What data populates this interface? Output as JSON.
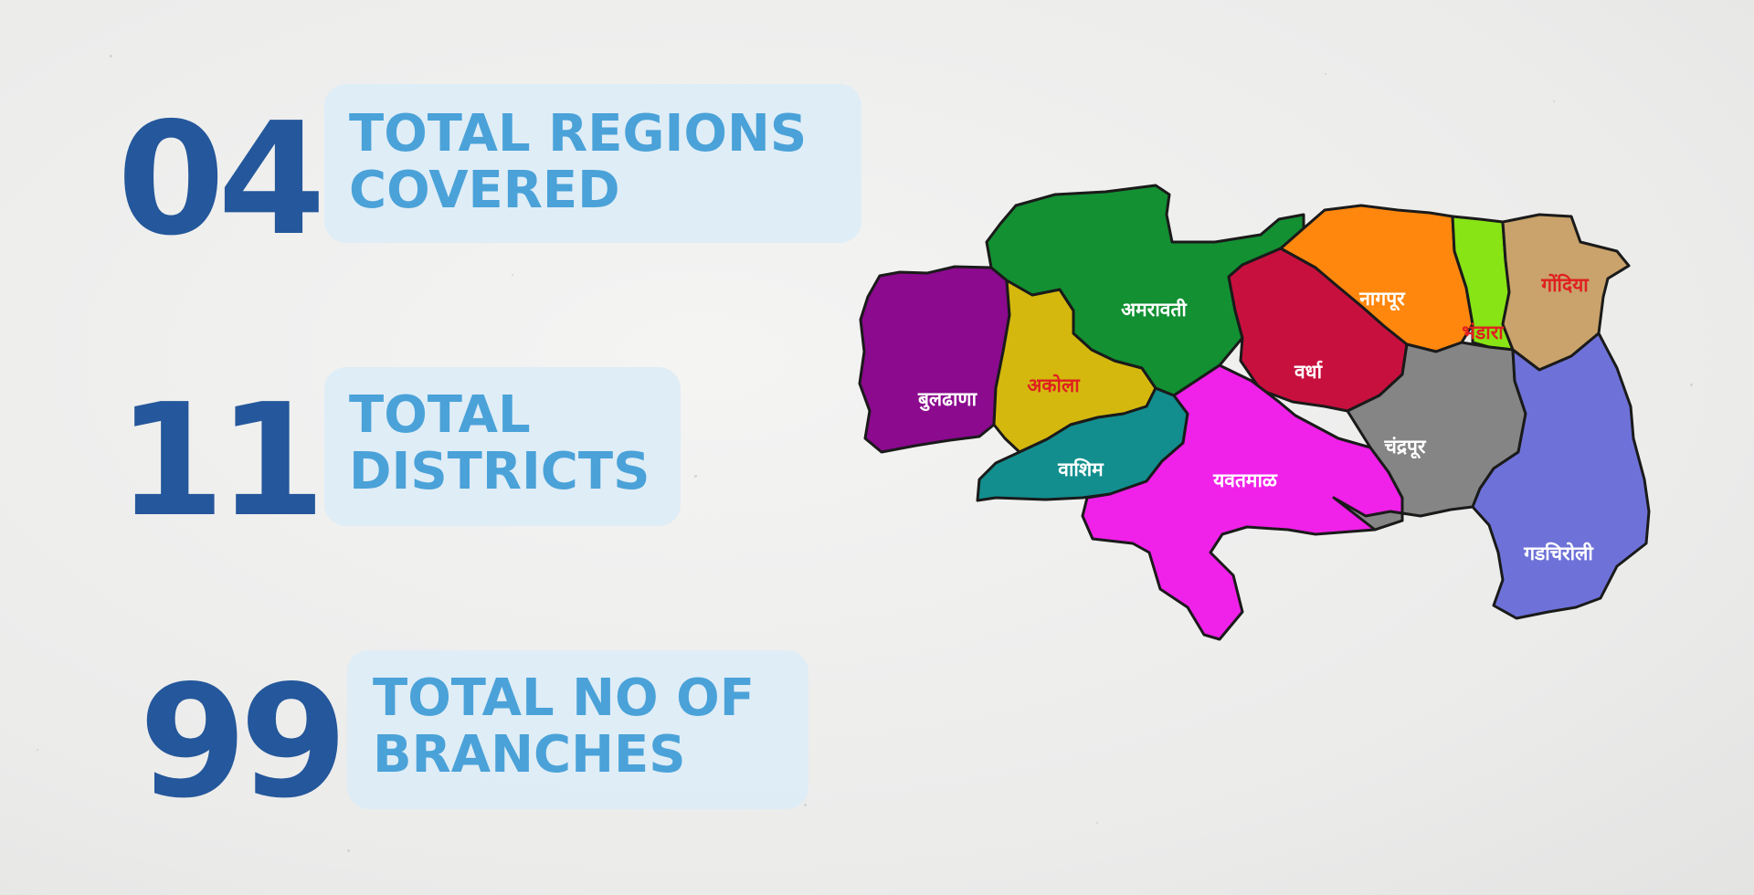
{
  "stats": [
    {
      "number": "04",
      "line1": "TOTAL REGIONS",
      "line2": "COVERED"
    },
    {
      "number": "11",
      "line1": "TOTAL",
      "line2": "DISTRICTS"
    },
    {
      "number": "99",
      "line1": "TOTAL NO OF",
      "line2": "BRANCHES"
    }
  ],
  "map": {
    "districts": [
      {
        "name": "बुलढाणा",
        "fill": "#8b0a8e",
        "text_color": "#ffffff"
      },
      {
        "name": "अकोला",
        "fill": "#d4b80e",
        "text_color": "#e02020"
      },
      {
        "name": "वाशिम",
        "fill": "#128e8e",
        "text_color": "#ffffff"
      },
      {
        "name": "अमरावती",
        "fill": "#129032",
        "text_color": "#ffffff"
      },
      {
        "name": "वर्धा",
        "fill": "#c8103e",
        "text_color": "#ffffff"
      },
      {
        "name": "यवतमाळ",
        "fill": "#f021e8",
        "text_color": "#ffffff"
      },
      {
        "name": "नागपूर",
        "fill": "#ff870e",
        "text_color": "#ffffff"
      },
      {
        "name": "भंडारा",
        "fill": "#88e414",
        "text_color": "#e02020"
      },
      {
        "name": "गोंदिया",
        "fill": "#c9a36b",
        "text_color": "#e02020"
      },
      {
        "name": "चंद्रपूर",
        "fill": "#858585",
        "text_color": "#ffffff"
      },
      {
        "name": "गडचिरोली",
        "fill": "#6e72d8",
        "text_color": "#ffffff"
      }
    ]
  }
}
